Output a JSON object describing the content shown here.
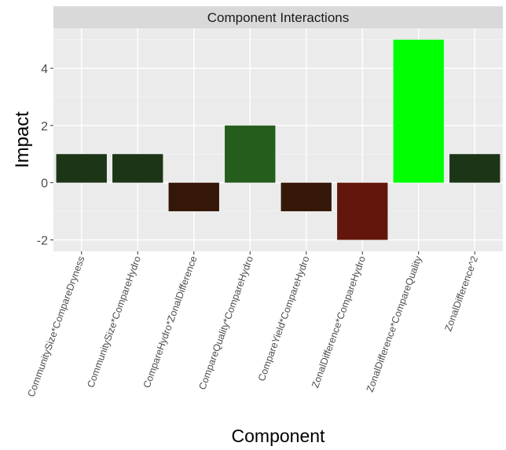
{
  "chart_data": {
    "type": "bar",
    "title": "Component Interactions",
    "xlabel": "Component",
    "ylabel": "Impact",
    "ylim": [
      -2.4,
      5.4
    ],
    "yticks": [
      -2,
      0,
      2,
      4
    ],
    "grid": true,
    "legend": "none",
    "categories": [
      "CommunitySize*CompareDryness",
      "CommunitySize*CompareHydro",
      "CompareHydro*ZonalDifference",
      "CompareQuality*CompareHydro",
      "CompareYield*CompareHydro",
      "ZonalDifference*CompareHydro",
      "ZonalDifference*CompareQuality",
      "ZonalDifference^2"
    ],
    "values": [
      1,
      1,
      -1,
      2,
      -1,
      -2,
      5,
      1
    ],
    "bar_colors": [
      "#1c3516",
      "#1c3516",
      "#351709",
      "#245d1c",
      "#351709",
      "#63170c",
      "#00ff00",
      "#1c3516"
    ],
    "colors": {
      "panel_background": "#ebebeb",
      "grid_major": "#ffffff",
      "grid_minor": "#f4f4f4",
      "strip_background": "#d9d9d9",
      "tick": "#333333"
    }
  }
}
